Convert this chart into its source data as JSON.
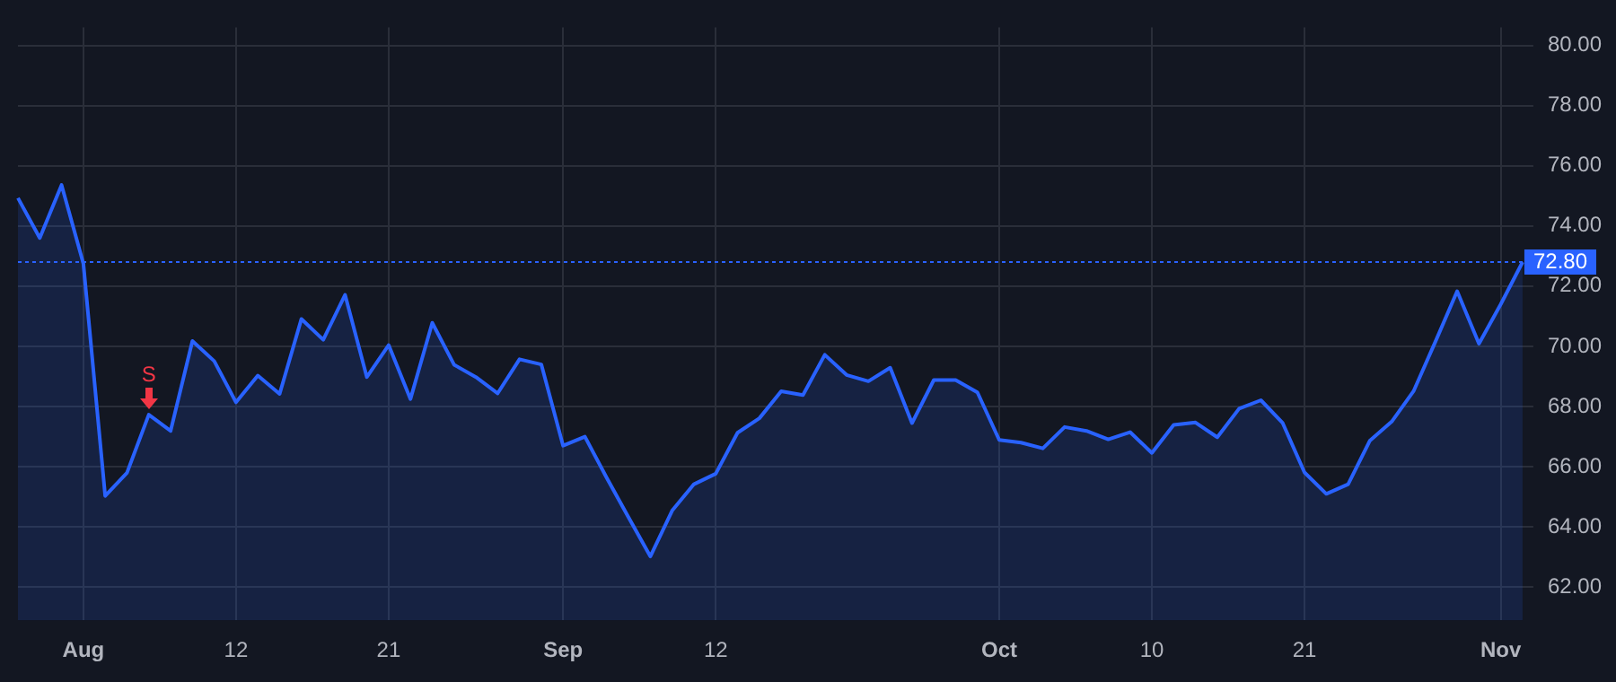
{
  "chart_data": {
    "type": "area",
    "categories": [
      null,
      null,
      null,
      "Aug",
      null,
      null,
      null,
      null,
      null,
      null,
      "12",
      null,
      null,
      null,
      null,
      null,
      null,
      "21",
      null,
      null,
      null,
      null,
      null,
      null,
      null,
      "Sep",
      null,
      null,
      null,
      null,
      null,
      null,
      "12",
      null,
      null,
      null,
      null,
      null,
      null,
      null,
      null,
      null,
      null,
      null,
      null,
      "Oct",
      null,
      null,
      null,
      null,
      null,
      null,
      "10",
      null,
      null,
      null,
      null,
      null,
      null,
      "21",
      null,
      null,
      null,
      null,
      null,
      null,
      null,
      null,
      "Nov",
      null
    ],
    "series": [
      {
        "color": "#2962ff",
        "values": [
          74.93,
          73.6,
          75.36,
          72.75,
          65.03,
          65.8,
          67.73,
          67.19,
          70.18,
          69.51,
          68.14,
          69.03,
          68.42,
          70.91,
          70.22,
          71.71,
          68.98,
          70.04,
          68.25,
          70.78,
          69.39,
          68.98,
          68.44,
          69.57,
          69.4,
          66.7,
          67.0,
          65.63,
          64.32,
          63.02,
          64.54,
          65.42,
          65.77,
          67.13,
          67.61,
          68.51,
          68.38,
          69.72,
          69.05,
          68.84,
          69.29,
          67.45,
          68.88,
          68.88,
          68.47,
          66.89,
          66.8,
          66.61,
          67.32,
          67.19,
          66.91,
          67.15,
          66.46,
          67.39,
          67.47,
          66.98,
          67.93,
          68.21,
          67.45,
          65.81,
          65.1,
          65.42,
          66.87,
          67.5,
          68.51,
          70.15,
          71.83,
          70.09,
          71.4,
          72.8
        ]
      }
    ],
    "ylim": [
      60.9,
      80.6
    ],
    "yticks": [
      {
        "value": 62,
        "label": "62.00"
      },
      {
        "value": 64,
        "label": "64.00"
      },
      {
        "value": 66,
        "label": "66.00"
      },
      {
        "value": 68,
        "label": "68.00"
      },
      {
        "value": 70,
        "label": "70.00"
      },
      {
        "value": 72,
        "label": "72.00"
      },
      {
        "value": 74,
        "label": "74.00"
      },
      {
        "value": 76,
        "label": "76.00"
      },
      {
        "value": 78,
        "label": "78.00"
      },
      {
        "value": 80,
        "label": "80.00"
      }
    ],
    "ref_lines": [
      {
        "axis": "y",
        "value": 72.8,
        "label": "72.80",
        "color": "#2962ff",
        "line_style": "dotted"
      }
    ],
    "annotations": [
      {
        "text": "S",
        "y": 67.73
      }
    ],
    "grid": true,
    "legend": false,
    "marker": "none",
    "line_style": "solid"
  }
}
